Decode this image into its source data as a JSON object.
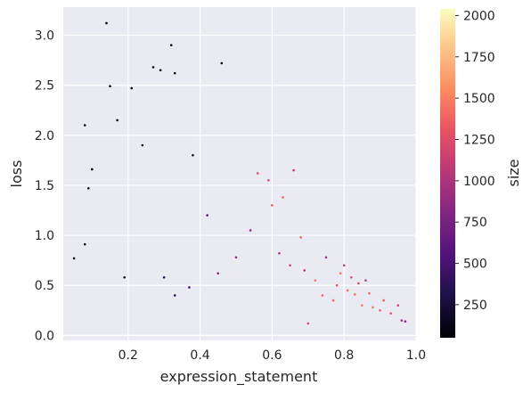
{
  "chart_data": {
    "type": "scatter",
    "title": "",
    "xlabel": "expression_statement",
    "ylabel": "loss",
    "xlim": [
      0.02,
      1.0
    ],
    "ylim": [
      -0.05,
      3.28
    ],
    "x_ticks": [
      0.2,
      0.4,
      0.6,
      0.8,
      1.0
    ],
    "x_tick_labels": [
      "0.2",
      "0.4",
      "0.6",
      "0.8",
      "1.0"
    ],
    "y_ticks": [
      0.0,
      0.5,
      1.0,
      1.5,
      2.0,
      2.5,
      3.0
    ],
    "y_tick_labels": [
      "0.0",
      "0.5",
      "1.0",
      "1.5",
      "2.0",
      "2.5",
      "3.0"
    ],
    "grid": true,
    "background": "#eaeaf2",
    "colormap": "magma",
    "colorbar": {
      "label": "size",
      "range": [
        50,
        2040
      ],
      "ticks": [
        250,
        500,
        750,
        1000,
        1250,
        1500,
        1750,
        2000
      ],
      "tick_labels": [
        "250",
        "500",
        "750",
        "1000",
        "1250",
        "1500",
        "1750",
        "2000"
      ]
    },
    "series": [
      {
        "points": [
          [
            0.05,
            0.77,
            120
          ],
          [
            0.08,
            2.1,
            100
          ],
          [
            0.08,
            0.91,
            90
          ],
          [
            0.09,
            1.47,
            110
          ],
          [
            0.1,
            1.66,
            80
          ],
          [
            0.14,
            3.12,
            100
          ],
          [
            0.15,
            2.49,
            120
          ],
          [
            0.17,
            2.15,
            90
          ],
          [
            0.19,
            0.58,
            200
          ],
          [
            0.21,
            2.47,
            100
          ],
          [
            0.24,
            1.9,
            150
          ],
          [
            0.27,
            2.68,
            100
          ],
          [
            0.29,
            2.65,
            100
          ],
          [
            0.32,
            2.9,
            150
          ],
          [
            0.33,
            2.62,
            120
          ],
          [
            0.46,
            2.72,
            100
          ],
          [
            0.3,
            0.58,
            300
          ],
          [
            0.33,
            0.4,
            400
          ],
          [
            0.37,
            0.48,
            500
          ],
          [
            0.59,
            1.55,
            1200
          ],
          [
            0.6,
            1.3,
            1300
          ],
          [
            0.63,
            1.38,
            1350
          ],
          [
            0.68,
            0.98,
            1400
          ],
          [
            0.72,
            0.55,
            1450
          ],
          [
            0.74,
            0.4,
            1400
          ],
          [
            0.77,
            0.35,
            1400
          ],
          [
            0.79,
            0.62,
            1450
          ],
          [
            0.81,
            0.45,
            1500
          ],
          [
            0.83,
            0.41,
            1450
          ],
          [
            0.85,
            0.3,
            1500
          ],
          [
            0.87,
            0.42,
            1400
          ],
          [
            0.88,
            0.28,
            1450
          ],
          [
            0.9,
            0.25,
            1400
          ],
          [
            0.91,
            0.35,
            1350
          ],
          [
            0.93,
            0.22,
            1300
          ],
          [
            0.95,
            0.3,
            1200
          ],
          [
            0.96,
            0.15,
            900
          ],
          [
            0.97,
            0.14,
            800
          ],
          [
            0.7,
            0.12,
            1200
          ],
          [
            0.66,
            1.65,
            1100
          ],
          [
            0.56,
            1.62,
            1250
          ],
          [
            0.42,
            1.2,
            600
          ],
          [
            0.38,
            1.8,
            200
          ],
          [
            0.45,
            0.62,
            800
          ],
          [
            0.5,
            0.78,
            900
          ],
          [
            0.54,
            1.05,
            850
          ],
          [
            0.62,
            0.82,
            1000
          ],
          [
            0.65,
            0.7,
            1150
          ],
          [
            0.69,
            0.65,
            1000
          ],
          [
            0.75,
            0.78,
            950
          ],
          [
            0.78,
            0.5,
            1300
          ],
          [
            0.8,
            0.7,
            1100
          ],
          [
            0.82,
            0.58,
            1250
          ],
          [
            0.84,
            0.52,
            1200
          ],
          [
            0.86,
            0.55,
            1050
          ]
        ]
      }
    ]
  }
}
